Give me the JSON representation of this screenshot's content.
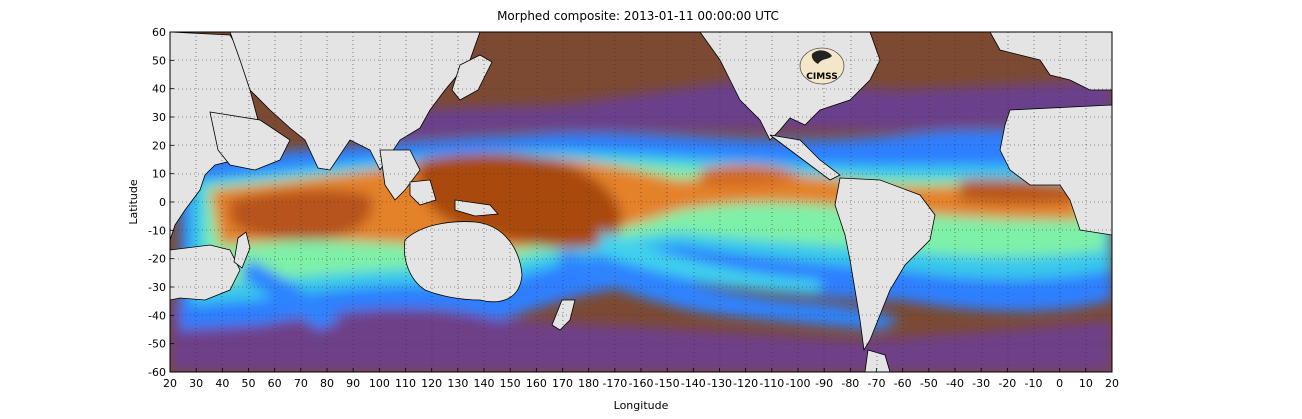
{
  "title": "Morphed composite: 2013-01-11 00:00:00 UTC",
  "xlabel": "Longitude",
  "ylabel": "Latitude",
  "x_ticks": [
    "20",
    "30",
    "40",
    "50",
    "60",
    "70",
    "80",
    "90",
    "100",
    "110",
    "120",
    "130",
    "140",
    "150",
    "160",
    "170",
    "180",
    "-170",
    "-160",
    "-150",
    "-140",
    "-130",
    "-120",
    "-110",
    "-100",
    "-90",
    "-80",
    "-70",
    "-60",
    "-50",
    "-40",
    "-30",
    "-20",
    "-10",
    "0",
    "10",
    "20"
  ],
  "y_ticks": [
    "60",
    "50",
    "40",
    "30",
    "20",
    "10",
    "0",
    "-10",
    "-20",
    "-30",
    "-40",
    "-50",
    "-60"
  ],
  "logo_text": "CIMSS",
  "colors": {
    "land": "#e4e4e4",
    "dry": "#6f3f86",
    "very_dry": "#7a4a2e",
    "moderate": "#2f84ff",
    "moist": "#8ff0a0",
    "very_moist": "#e4822a",
    "wettest": "#a04610"
  }
}
